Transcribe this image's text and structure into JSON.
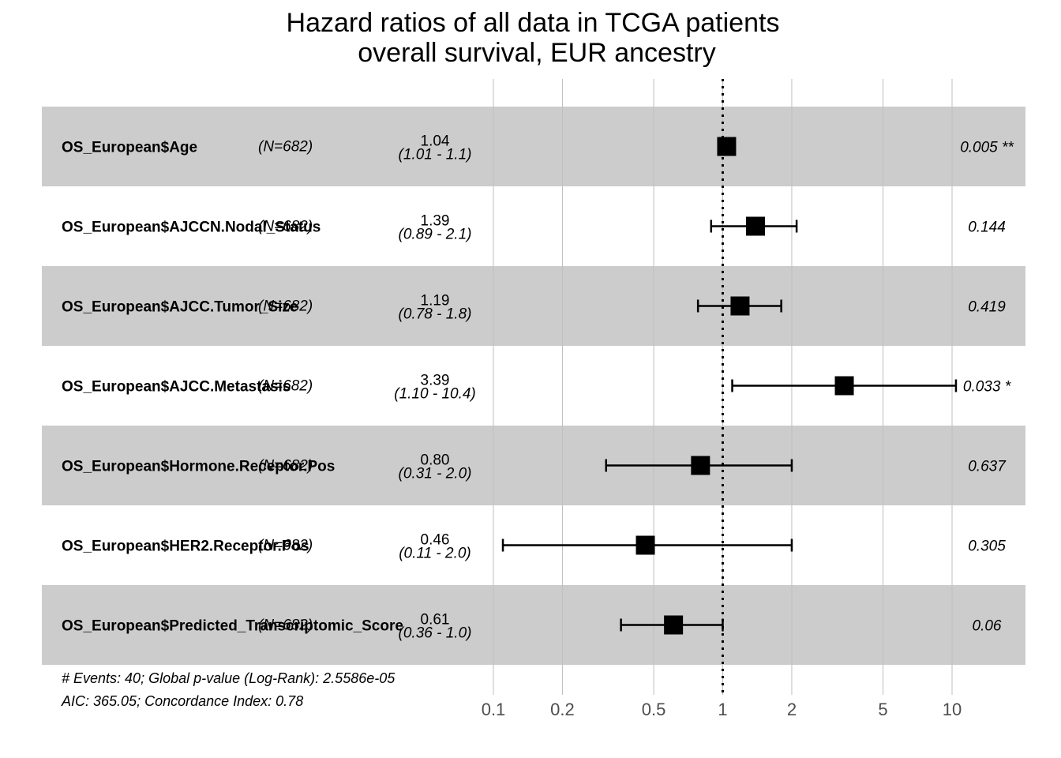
{
  "chart_data": {
    "type": "forest",
    "title": [
      "Hazard ratios of all data in TCGA patients",
      "overall survival, EUR ancestry"
    ],
    "xscale": "log",
    "xlim": [
      0.1,
      18
    ],
    "reference_line": 1,
    "reference_line_style": "dotted",
    "grid": true,
    "x_ticks": [
      {
        "value": 0.1,
        "label": "0.1"
      },
      {
        "value": 0.2,
        "label": "0.2"
      },
      {
        "value": 0.5,
        "label": "0.5"
      },
      {
        "value": 1,
        "label": "1"
      },
      {
        "value": 2,
        "label": "2"
      },
      {
        "value": 5,
        "label": "5"
      },
      {
        "value": 10,
        "label": "10"
      }
    ],
    "rows": [
      {
        "variable": "OS_European$Age",
        "n": "(N=682)",
        "hr": 1.04,
        "lower": 1.01,
        "upper": 1.1,
        "hr_text": "1.04",
        "ci_text": "(1.01 -  1.1)",
        "p_text": "0.005 **",
        "shaded": true
      },
      {
        "variable": "OS_European$AJCCN.Nodal_Status",
        "n": "(N=682)",
        "hr": 1.39,
        "lower": 0.89,
        "upper": 2.1,
        "hr_text": "1.39",
        "ci_text": "(0.89 -  2.1)",
        "p_text": "0.144",
        "shaded": false
      },
      {
        "variable": "OS_European$AJCC.Tumor_Size",
        "n": "(N=682)",
        "hr": 1.19,
        "lower": 0.78,
        "upper": 1.8,
        "hr_text": "1.19",
        "ci_text": "(0.78 -  1.8)",
        "p_text": "0.419",
        "shaded": true
      },
      {
        "variable": "OS_European$AJCC.Metastasis",
        "n": "(N=682)",
        "hr": 3.39,
        "lower": 1.1,
        "upper": 10.4,
        "hr_text": "3.39",
        "ci_text": "(1.10 - 10.4)",
        "p_text": "0.033 *",
        "shaded": false
      },
      {
        "variable": "OS_European$Hormone.Receptor.Pos",
        "n": "(N=682)",
        "hr": 0.8,
        "lower": 0.31,
        "upper": 2.0,
        "hr_text": "0.80",
        "ci_text": "(0.31 -  2.0)",
        "p_text": "0.637",
        "shaded": true
      },
      {
        "variable": "OS_European$HER2.Receptor.Pos",
        "n": "(N=682)",
        "hr": 0.46,
        "lower": 0.11,
        "upper": 2.0,
        "hr_text": "0.46",
        "ci_text": "(0.11 -  2.0)",
        "p_text": "0.305",
        "shaded": false
      },
      {
        "variable": "OS_European$Predicted_Transcriptomic_Score",
        "n": "(N=682)",
        "hr": 0.61,
        "lower": 0.36,
        "upper": 1.0,
        "hr_text": "0.61",
        "ci_text": "(0.36 -  1.0)",
        "p_text": "0.06",
        "shaded": true
      }
    ],
    "footer": [
      "# Events: 40; Global p-value (Log-Rank): 2.5586e-05",
      "AIC: 365.05; Concordance Index: 0.78"
    ],
    "colors": {
      "shaded_row": "#cccccc",
      "grid_line": "#bfbfbf",
      "mark": "#000000",
      "tick_text": "#4d4d4d"
    }
  }
}
